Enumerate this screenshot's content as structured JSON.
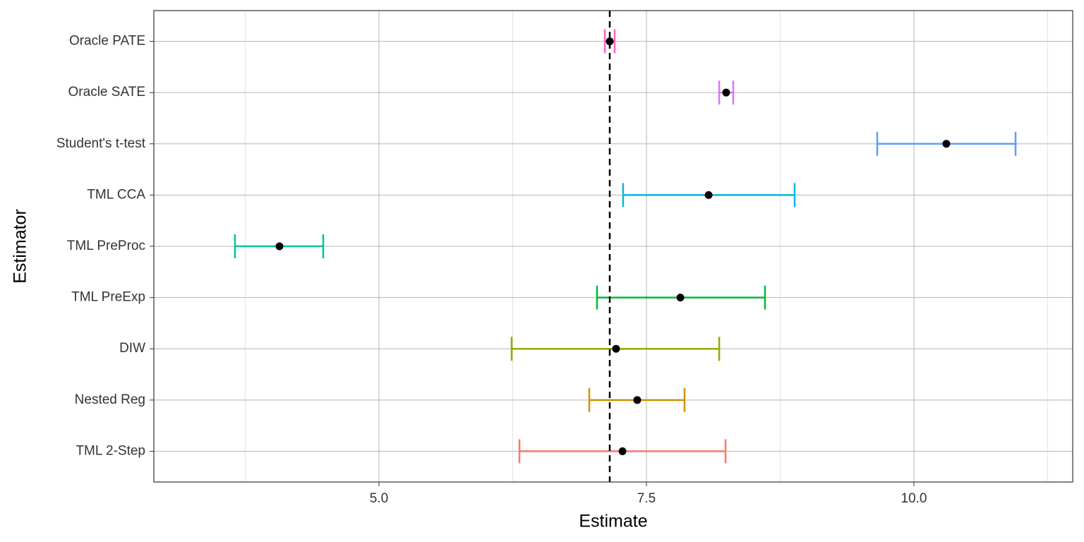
{
  "chart_data": {
    "type": "interval",
    "xlabel": "Estimate",
    "ylabel": "Estimator",
    "categories": [
      "TML 2-Step",
      "Nested Reg",
      "DIW",
      "TML PreExp",
      "TML PreProc",
      "TML CCA",
      "Student's t-test",
      "Oracle SATE",
      "Oracle PATE"
    ],
    "values": [
      7.276,
      7.414,
      7.216,
      7.817,
      4.07,
      8.081,
      10.303,
      8.245,
      7.157
    ],
    "lower": [
      6.313,
      6.966,
      6.24,
      7.038,
      3.654,
      7.282,
      9.657,
      8.18,
      7.111
    ],
    "upper": [
      8.239,
      7.856,
      8.18,
      8.608,
      4.479,
      8.885,
      10.95,
      8.311,
      7.203
    ],
    "colors": [
      "#F8766D",
      "#D39200",
      "#93AA00",
      "#00BA38",
      "#00C19F",
      "#00B9E3",
      "#619CFF",
      "#DB72FB",
      "#FF61C3"
    ],
    "point_color": "#000000",
    "reference_line": 7.157,
    "xlim": [
      2.896,
      11.484
    ],
    "xticks": [
      {
        "value": 5,
        "label": "5.0"
      },
      {
        "value": 7.5,
        "label": "7.5"
      },
      {
        "value": 10,
        "label": "10.0"
      }
    ],
    "xminor": [
      3.75,
      6.25,
      8.75,
      11.25
    ],
    "grid": true
  }
}
